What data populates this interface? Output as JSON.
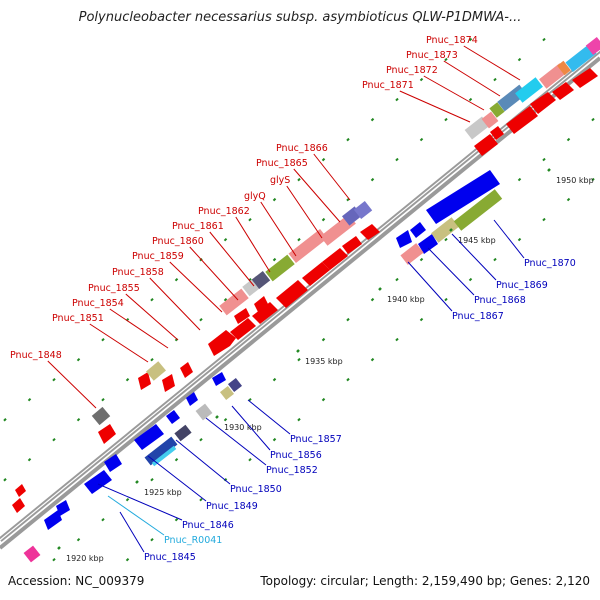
{
  "title": "Polynucleobacter necessarius subsp. asymbioticus QLW-P1DMWA-...",
  "accession": "Accession: NC_009379",
  "summary": "Topology: circular; Length: 2,159,490 bp; Genes: 2,120",
  "colors": {
    "forward_label": "#cc0000",
    "reverse_label": "#0000bb",
    "rna_label": "#22aadd",
    "backbone": "#999999",
    "tick": "#228822"
  },
  "kbp_labels": [
    {
      "kbp": 1920,
      "text": "1920 kbp"
    },
    {
      "kbp": 1925,
      "text": "1925 kbp"
    },
    {
      "kbp": 1930,
      "text": "1930 kbp"
    },
    {
      "kbp": 1935,
      "text": "1935 kbp"
    },
    {
      "kbp": 1940,
      "text": "1940 kbp"
    },
    {
      "kbp": 1945,
      "text": "1945 kbp"
    },
    {
      "kbp": 1950,
      "text": "1950 kbp"
    }
  ],
  "forward_gene_labels": [
    {
      "text": "Pnuc_1848"
    },
    {
      "text": "Pnuc_1851"
    },
    {
      "text": "Pnuc_1854"
    },
    {
      "text": "Pnuc_1855"
    },
    {
      "text": "Pnuc_1858"
    },
    {
      "text": "Pnuc_1859"
    },
    {
      "text": "Pnuc_1860"
    },
    {
      "text": "Pnuc_1861"
    },
    {
      "text": "Pnuc_1862"
    },
    {
      "text": "glyQ"
    },
    {
      "text": "glyS"
    },
    {
      "text": "Pnuc_1865"
    },
    {
      "text": "Pnuc_1866"
    },
    {
      "text": "Pnuc_1871"
    },
    {
      "text": "Pnuc_1872"
    },
    {
      "text": "Pnuc_1873"
    },
    {
      "text": "Pnuc_1874"
    }
  ],
  "reverse_gene_labels": [
    {
      "text": "Pnuc_1845",
      "kind": "cds"
    },
    {
      "text": "Pnuc_R0041",
      "kind": "rna"
    },
    {
      "text": "Pnuc_1846",
      "kind": "cds"
    },
    {
      "text": "Pnuc_1849",
      "kind": "cds"
    },
    {
      "text": "Pnuc_1850",
      "kind": "cds"
    },
    {
      "text": "Pnuc_1852",
      "kind": "cds"
    },
    {
      "text": "Pnuc_1856",
      "kind": "cds"
    },
    {
      "text": "Pnuc_1857",
      "kind": "cds"
    },
    {
      "text": "Pnuc_1867",
      "kind": "cds"
    },
    {
      "text": "Pnuc_1868",
      "kind": "cds"
    },
    {
      "text": "Pnuc_1869",
      "kind": "cds"
    },
    {
      "text": "Pnuc_1870",
      "kind": "cds"
    }
  ]
}
